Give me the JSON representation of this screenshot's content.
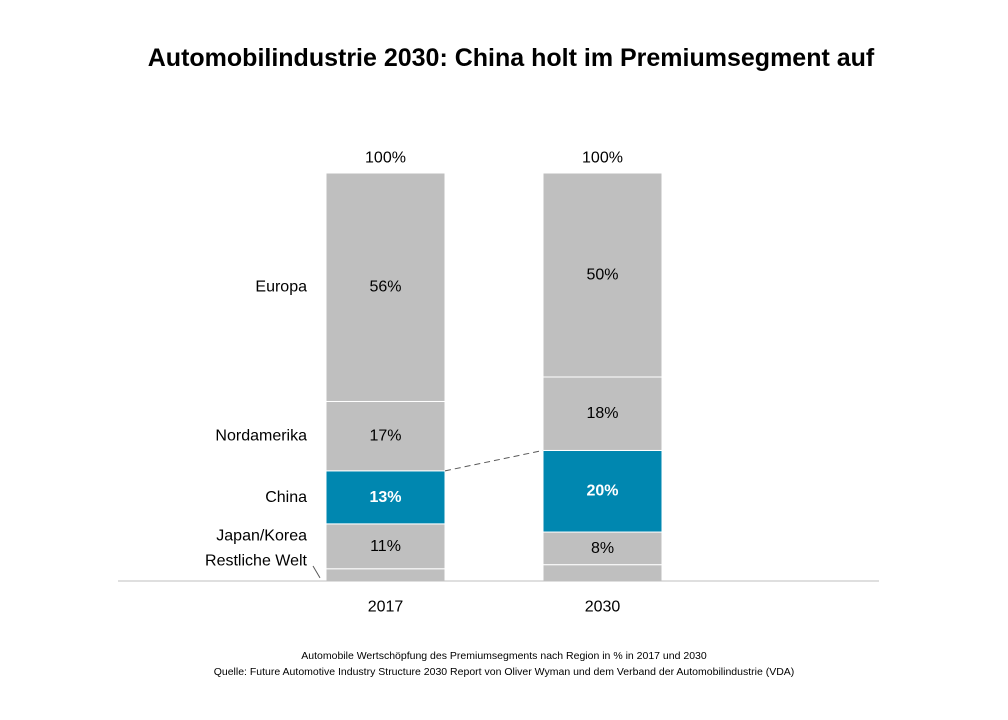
{
  "title": "Automobilindustrie 2030: China holt im Premiumsegment auf",
  "caption": "Automobile Wertschöpfung des Premiumsegments nach Region in % in 2017 und 2030",
  "source": "Quelle: Future Automotive Industry Structure 2030 Report von Oliver Wyman und dem Verband der Automobilindustrie (VDA)",
  "colors": {
    "neutral": "#bfbfbf",
    "accent": "#0087b0",
    "axis": "#bfbfbf",
    "connector": "#595959"
  },
  "chart_data": {
    "type": "bar",
    "stacked": true,
    "categories": [
      "2017",
      "2030"
    ],
    "totals": [
      "100%",
      "100%"
    ],
    "series": [
      {
        "name": "Restliche Welt",
        "values": [
          3,
          4
        ],
        "labels": [
          "",
          ""
        ]
      },
      {
        "name": "Japan/Korea",
        "values": [
          11,
          8
        ],
        "labels": [
          "11%",
          "8%"
        ]
      },
      {
        "name": "China",
        "values": [
          13,
          20
        ],
        "labels": [
          "13%",
          "20%"
        ],
        "highlight": true
      },
      {
        "name": "Nordamerika",
        "values": [
          17,
          18
        ],
        "labels": [
          "17%",
          "18%"
        ]
      },
      {
        "name": "Europa",
        "values": [
          56,
          50
        ],
        "labels": [
          "56%",
          "50%"
        ]
      }
    ],
    "ylim": [
      0,
      100
    ],
    "grid": false,
    "legend": "left"
  }
}
